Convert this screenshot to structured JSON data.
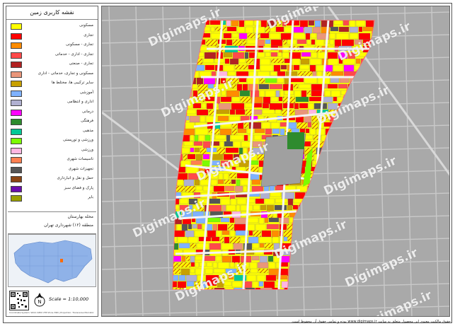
{
  "legend": {
    "title": "نقشه کاربری زمین",
    "items": [
      {
        "label": "مسکونی",
        "color": "#ffff00"
      },
      {
        "label": "تجاری",
        "color": "#ff0000"
      },
      {
        "label": "تجاری - مسکونی",
        "color": "#ff8c00"
      },
      {
        "label": "تجاری - اداری - خدماتی",
        "color": "#ff4a4a"
      },
      {
        "label": "تجاری - صنعتی",
        "color": "#b22222"
      },
      {
        "label": "مسکونی و تجاری، خدماتی - اداری",
        "color": "#e9967a"
      },
      {
        "label": "سایر ترکیبی ها، مختلط ها",
        "color": "#c8a000"
      },
      {
        "label": "آموزشی",
        "color": "#7fb2ff"
      },
      {
        "label": "اداری و انتظامی",
        "color": "#b0b0d0"
      },
      {
        "label": "درمانی",
        "color": "#ff00ff"
      },
      {
        "label": "فرهنگی",
        "color": "#2e8b2e"
      },
      {
        "label": "مذهبی",
        "color": "#00c896"
      },
      {
        "label": "ورزشی و توریستی",
        "color": "#7cfc00"
      },
      {
        "label": "ورزشی",
        "color": "#ffb6e1"
      },
      {
        "label": "تاسیسات شهری",
        "color": "#ff7f50"
      },
      {
        "label": "تجهیزات شهری",
        "color": "#555555"
      },
      {
        "label": "حمل و نقل و انبارداری",
        "color": "#8b4513"
      },
      {
        "label": "پارک و فضای سبز",
        "color": "#6a0dad"
      },
      {
        "label": "بایر",
        "color": "#9aa000"
      }
    ]
  },
  "info": {
    "neighborhood": "محله بهارستان",
    "district": "منطقه (۱۲) شهرداری تهران"
  },
  "scale_label": "Scale = 1:10,000",
  "credit": "Coordinate System: WGS 1984 UTM Zone 39N | Projection: Transverse Mercator",
  "watermark": "Digimaps.ir",
  "footer": "حقوق مالکیت معنوی این محصول متعلق به سایت www.digimaps.ir بوده و تمامی حقوق آن محفوظ است."
}
